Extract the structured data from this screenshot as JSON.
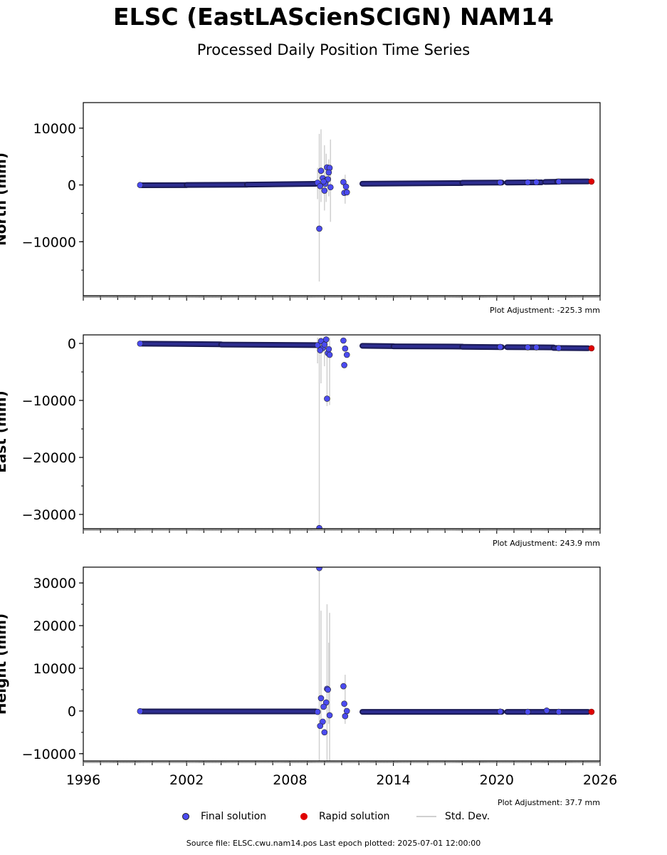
{
  "title": "ELSC (EastLAScienSCIGN) NAM14",
  "subtitle": "Processed Daily Position Time Series",
  "legend": {
    "final_label": "Final solution",
    "rapid_label": "Rapid solution",
    "std_label": "Std. Dev.",
    "final_color": "#4b4bf0",
    "rapid_color": "#e00000",
    "std_color": "#d0d0d0"
  },
  "source_text": "Source file: ELSC.cwu.nam14.pos  Last epoch plotted: 2025-07-01 12:00:00",
  "chart_data": [
    {
      "type": "scatter",
      "ylabel": "North (mm)",
      "xlim": [
        1996,
        2026
      ],
      "ylim": [
        -19500,
        14500
      ],
      "yticks": [
        10000,
        0,
        -10000
      ],
      "ytick_labels": [
        "10000",
        "0",
        "−10000"
      ],
      "adjustment": "Plot Adjustment: -225.3 mm",
      "segments": [
        {
          "x": [
            1999.4,
            2002.0
          ],
          "y": [
            -50,
            -30
          ]
        },
        {
          "x": [
            2002.0,
            2005.5
          ],
          "y": [
            -10,
            40
          ]
        },
        {
          "x": [
            2005.5,
            2009.5
          ],
          "y": [
            60,
            200
          ]
        },
        {
          "x": [
            2012.2,
            2018.0
          ],
          "y": [
            220,
            330
          ]
        },
        {
          "x": [
            2018.0,
            2020.3
          ],
          "y": [
            380,
            420
          ]
        },
        {
          "x": [
            2020.6,
            2022.6
          ],
          "y": [
            420,
            460
          ]
        },
        {
          "x": [
            2022.8,
            2023.5
          ],
          "y": [
            520,
            560
          ]
        },
        {
          "x": [
            2023.5,
            2025.3
          ],
          "y": [
            600,
            620
          ]
        }
      ],
      "points": [
        {
          "x": 1999.3,
          "y": -20
        },
        {
          "x": 2009.6,
          "y": 400
        },
        {
          "x": 2009.7,
          "y": -7700
        },
        {
          "x": 2009.8,
          "y": 2500
        },
        {
          "x": 2009.9,
          "y": 1200
        },
        {
          "x": 2010.0,
          "y": -1000
        },
        {
          "x": 2010.1,
          "y": 800
        },
        {
          "x": 2010.15,
          "y": 3100
        },
        {
          "x": 2010.2,
          "y": 1000
        },
        {
          "x": 2010.3,
          "y": 3000
        },
        {
          "x": 2010.25,
          "y": 2200
        },
        {
          "x": 2010.05,
          "y": 200
        },
        {
          "x": 2009.75,
          "y": -200
        },
        {
          "x": 2009.95,
          "y": 600
        },
        {
          "x": 2010.35,
          "y": -400
        },
        {
          "x": 2011.1,
          "y": 500
        },
        {
          "x": 2011.15,
          "y": -1400
        },
        {
          "x": 2011.25,
          "y": -300
        },
        {
          "x": 2011.3,
          "y": -1300
        },
        {
          "x": 2020.2,
          "y": 430
        },
        {
          "x": 2021.8,
          "y": 450
        },
        {
          "x": 2022.3,
          "y": 480
        },
        {
          "x": 2023.6,
          "y": 580
        }
      ],
      "errorbars": [
        {
          "x": 2009.7,
          "lo": -17000,
          "hi": 9000
        },
        {
          "x": 2009.8,
          "lo": -3000,
          "hi": 9800
        },
        {
          "x": 2009.6,
          "lo": -2500,
          "hi": 3000
        },
        {
          "x": 2010.0,
          "lo": -4500,
          "hi": 7000
        },
        {
          "x": 2010.1,
          "lo": -3000,
          "hi": 5500
        },
        {
          "x": 2010.35,
          "lo": -6500,
          "hi": 8000
        },
        {
          "x": 2010.25,
          "lo": -2000,
          "hi": 4500
        },
        {
          "x": 2011.2,
          "lo": -3300,
          "hi": 1800
        }
      ],
      "rapid": [
        {
          "x": 2025.5,
          "y": 600
        }
      ]
    },
    {
      "type": "scatter",
      "ylabel": "East (mm)",
      "xlim": [
        1996,
        2026
      ],
      "ylim": [
        -32500,
        1500
      ],
      "yticks": [
        0,
        -10000,
        -20000,
        -30000
      ],
      "ytick_labels": [
        "0",
        "−10000",
        "−20000",
        "−30000"
      ],
      "adjustment": "Plot Adjustment: 243.9 mm",
      "segments": [
        {
          "x": [
            1999.4,
            2004.0
          ],
          "y": [
            -40,
            -150
          ]
        },
        {
          "x": [
            2004.0,
            2009.5
          ],
          "y": [
            -200,
            -300
          ]
        },
        {
          "x": [
            2012.2,
            2014.0
          ],
          "y": [
            -420,
            -480
          ]
        },
        {
          "x": [
            2014.0,
            2018.0
          ],
          "y": [
            -520,
            -560
          ]
        },
        {
          "x": [
            2018.0,
            2020.3
          ],
          "y": [
            -600,
            -650
          ]
        },
        {
          "x": [
            2020.6,
            2023.3
          ],
          "y": [
            -650,
            -700
          ]
        },
        {
          "x": [
            2023.3,
            2025.3
          ],
          "y": [
            -800,
            -850
          ]
        }
      ],
      "points": [
        {
          "x": 1999.3,
          "y": -30
        },
        {
          "x": 2009.6,
          "y": -300
        },
        {
          "x": 2009.7,
          "y": -32400
        },
        {
          "x": 2009.8,
          "y": 400
        },
        {
          "x": 2009.9,
          "y": -800
        },
        {
          "x": 2010.0,
          "y": -200
        },
        {
          "x": 2010.1,
          "y": 700
        },
        {
          "x": 2010.15,
          "y": -9700
        },
        {
          "x": 2010.2,
          "y": -1700
        },
        {
          "x": 2010.3,
          "y": -2000
        },
        {
          "x": 2010.25,
          "y": -1000
        },
        {
          "x": 2009.75,
          "y": -1200
        },
        {
          "x": 2011.1,
          "y": 500
        },
        {
          "x": 2011.15,
          "y": -3800
        },
        {
          "x": 2011.2,
          "y": -900
        },
        {
          "x": 2011.3,
          "y": -2000
        },
        {
          "x": 2020.2,
          "y": -620
        },
        {
          "x": 2021.8,
          "y": -680
        },
        {
          "x": 2022.3,
          "y": -690
        },
        {
          "x": 2023.6,
          "y": -820
        }
      ],
      "errorbars": [
        {
          "x": 2009.7,
          "lo": -32500,
          "hi": 1000
        },
        {
          "x": 2009.8,
          "lo": -7000,
          "hi": 1000
        },
        {
          "x": 2009.6,
          "lo": -3500,
          "hi": 1000
        },
        {
          "x": 2010.15,
          "lo": -11000,
          "hi": 1000
        },
        {
          "x": 2010.3,
          "lo": -10800,
          "hi": 1000
        },
        {
          "x": 2010.0,
          "lo": -4000,
          "hi": 1000
        }
      ],
      "rapid": [
        {
          "x": 2025.5,
          "y": -850
        }
      ]
    },
    {
      "type": "scatter",
      "ylabel": "Height (mm)",
      "xlim": [
        1996,
        2026
      ],
      "ylim": [
        -11700,
        33700
      ],
      "yticks": [
        30000,
        20000,
        10000,
        0,
        -10000
      ],
      "ytick_labels": [
        "30000",
        "20000",
        "10000",
        "0",
        "−10000"
      ],
      "xticks": [
        1996,
        2002,
        2008,
        2014,
        2020,
        2026
      ],
      "xtick_labels": [
        "1996",
        "2002",
        "2008",
        "2014",
        "2020",
        "2026"
      ],
      "adjustment": "Plot Adjustment: 37.7 mm",
      "segments": [
        {
          "x": [
            1999.4,
            2009.5
          ],
          "y": [
            -100,
            -100
          ]
        },
        {
          "x": [
            2012.2,
            2020.3
          ],
          "y": [
            -200,
            -200
          ]
        },
        {
          "x": [
            2020.6,
            2025.3
          ],
          "y": [
            -200,
            -200
          ]
        }
      ],
      "points": [
        {
          "x": 1999.3,
          "y": -50
        },
        {
          "x": 2009.6,
          "y": -200
        },
        {
          "x": 2009.7,
          "y": 33500
        },
        {
          "x": 2009.8,
          "y": 3000
        },
        {
          "x": 2009.9,
          "y": -2500
        },
        {
          "x": 2010.0,
          "y": -5000
        },
        {
          "x": 2010.1,
          "y": 2000
        },
        {
          "x": 2010.15,
          "y": 5200
        },
        {
          "x": 2010.2,
          "y": 5000
        },
        {
          "x": 2010.3,
          "y": -1000
        },
        {
          "x": 2009.75,
          "y": -3500
        },
        {
          "x": 2009.95,
          "y": 1000
        },
        {
          "x": 2011.1,
          "y": 5800
        },
        {
          "x": 2011.15,
          "y": 1700
        },
        {
          "x": 2011.2,
          "y": -1200
        },
        {
          "x": 2011.3,
          "y": 0
        },
        {
          "x": 2020.2,
          "y": -150
        },
        {
          "x": 2021.8,
          "y": -200
        },
        {
          "x": 2022.9,
          "y": 100
        },
        {
          "x": 2023.6,
          "y": -200
        }
      ],
      "errorbars": [
        {
          "x": 2009.7,
          "lo": -11700,
          "hi": 33700
        },
        {
          "x": 2009.8,
          "lo": -4000,
          "hi": 23500
        },
        {
          "x": 2010.15,
          "lo": -11700,
          "hi": 25000
        },
        {
          "x": 2010.3,
          "lo": -11700,
          "hi": 23000
        },
        {
          "x": 2010.25,
          "lo": -3000,
          "hi": 16000
        },
        {
          "x": 2011.2,
          "lo": -3000,
          "hi": 8500
        }
      ],
      "rapid": [
        {
          "x": 2025.5,
          "y": -200
        }
      ]
    }
  ]
}
